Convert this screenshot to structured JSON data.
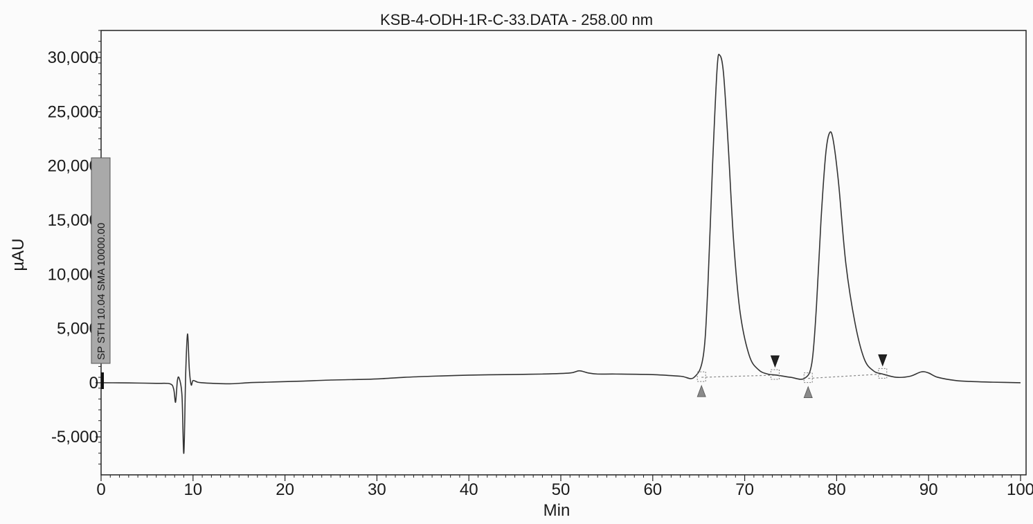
{
  "chart_data": {
    "type": "line",
    "title": "KSB-4-ODH-1R-C-33.DATA - 258.00 nm",
    "xlabel": "Min",
    "ylabel": "µAU",
    "xlim": [
      0,
      100
    ],
    "ylim": [
      -8500,
      32500
    ],
    "x_ticks": [
      0,
      10,
      20,
      30,
      40,
      50,
      60,
      70,
      80,
      90,
      100
    ],
    "y_ticks": [
      -5000,
      0,
      5000,
      10000,
      15000,
      20000,
      25000,
      30000
    ],
    "x_tick_labels": [
      "0",
      "10",
      "20",
      "30",
      "40",
      "50",
      "60",
      "70",
      "80",
      "90",
      "100"
    ],
    "y_tick_labels": [
      "-5,000",
      "0",
      "5,000",
      "10,000",
      "15,000",
      "20,000",
      "25,000",
      "30,000"
    ],
    "grid": false,
    "legend": "none",
    "series_color": "#333333",
    "baseline_color": "#888888",
    "event_label": "SP STH 10.04 SMA 10000.00",
    "series": [
      {
        "x": [
          0,
          2,
          4,
          6,
          7.5,
          7.9,
          8.1,
          8.3,
          8.5,
          8.8,
          9.0,
          9.2,
          9.4,
          9.6,
          9.8,
          10.0,
          10.5,
          11,
          12,
          14,
          16,
          18,
          20,
          22,
          25,
          28,
          30,
          33,
          36,
          40,
          44,
          48,
          51,
          52,
          53,
          54,
          56,
          60,
          63,
          64.5,
          65.5,
          66.0,
          66.5,
          67.0,
          67.3,
          67.7,
          68.2,
          68.8,
          69.5,
          70.5,
          71.5,
          72.5,
          73.5,
          75,
          76.5,
          77.3,
          77.8,
          78.3,
          78.8,
          79.2,
          79.6,
          80.2,
          81,
          82,
          83,
          84,
          85,
          86.5,
          88,
          89.2,
          90,
          91,
          93,
          95,
          97,
          100
        ],
        "y": [
          0,
          -10,
          -30,
          -60,
          -100,
          -600,
          -1800,
          200,
          400,
          -1200,
          -6500,
          800,
          4500,
          1200,
          -200,
          200,
          50,
          0,
          -50,
          -100,
          0,
          50,
          100,
          150,
          250,
          300,
          350,
          500,
          600,
          700,
          750,
          800,
          900,
          1100,
          900,
          800,
          800,
          750,
          600,
          500,
          2500,
          9000,
          20000,
          29000,
          30200,
          28500,
          22000,
          13000,
          6500,
          2500,
          1200,
          800,
          700,
          500,
          400,
          1800,
          7000,
          15000,
          21000,
          23000,
          22500,
          18500,
          11000,
          5500,
          2200,
          1100,
          800,
          500,
          600,
          1000,
          900,
          500,
          200,
          100,
          50,
          0
        ]
      }
    ],
    "peak_integration": [
      {
        "start_min": 65.3,
        "end_min": 73.3,
        "start_uau": 500,
        "end_uau": 700
      },
      {
        "start_min": 76.9,
        "end_min": 85.0,
        "start_uau": 400,
        "end_uau": 800
      }
    ]
  }
}
